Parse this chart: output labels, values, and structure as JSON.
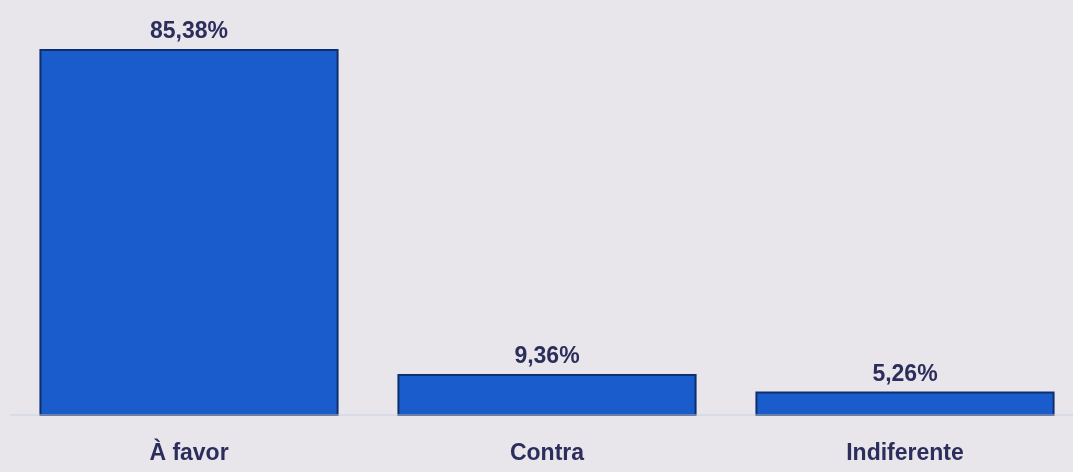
{
  "chart_data": {
    "type": "bar",
    "categories": [
      "À favor",
      "Contra",
      "Indiferente"
    ],
    "values": [
      85.38,
      9.36,
      5.26
    ],
    "value_labels": [
      "85,38%",
      "9,36%",
      "5,26%"
    ],
    "color": "#1a5ccc"
  }
}
